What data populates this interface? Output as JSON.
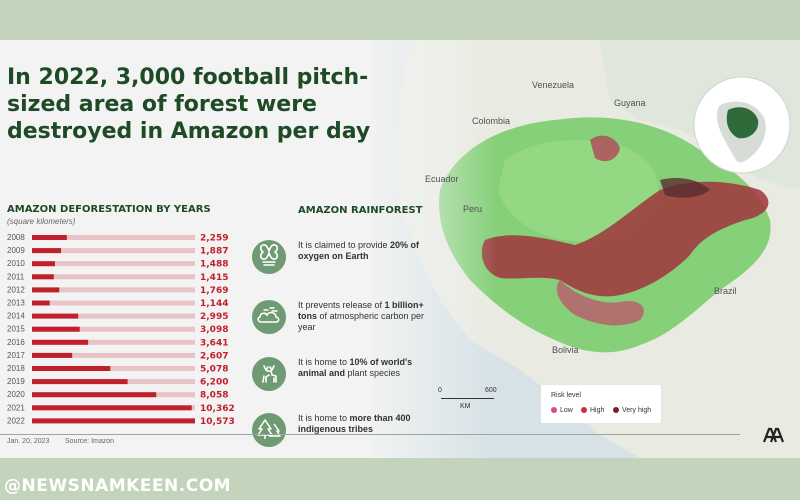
{
  "headline": "In 2022, 3,000 football pitch-sized area of forest were destroyed in Amazon per day",
  "chart_data": {
    "type": "bar",
    "title": "AMAZON DEFORESTATION BY YEARS",
    "subtitle": "(square kilometers)",
    "categories": [
      "2008",
      "2009",
      "2010",
      "2011",
      "2012",
      "2013",
      "2014",
      "2015",
      "2016",
      "2017",
      "2018",
      "2019",
      "2020",
      "2021",
      "2022"
    ],
    "values": [
      2259,
      1887,
      1488,
      1415,
      1769,
      1144,
      2995,
      3098,
      3641,
      2607,
      5078,
      6200,
      8058,
      10362,
      10573
    ],
    "value_labels": [
      "2,259",
      "1,887",
      "1,488",
      "1,415",
      "1,769",
      "1,144",
      "2,995",
      "3,098",
      "3,641",
      "2,607",
      "5,078",
      "6,200",
      "8,058",
      "10,362",
      "10,573"
    ],
    "ylim": [
      0,
      10573
    ],
    "bar_color": "#c0202c",
    "track_color": "#e8c4c8"
  },
  "rainforest": {
    "title": "AMAZON RAINFOREST",
    "facts": [
      {
        "icon": "oxygen-icon",
        "pre": "It is claimed to provide ",
        "bold": "20% of oxygen on Earth",
        "post": ""
      },
      {
        "icon": "cloud-icon",
        "pre": "It prevents release of ",
        "bold": "1 billion+ tons",
        "post": " of atmospheric carbon per year"
      },
      {
        "icon": "deer-icon",
        "pre": "It is home to ",
        "bold": "10% of world's animal and",
        "post": " plant species"
      },
      {
        "icon": "tree-icon",
        "pre": "It is home to ",
        "bold": "more than 400 indigenous tribes",
        "post": ""
      }
    ]
  },
  "map": {
    "labels": [
      "Venezuela",
      "Guyana",
      "Colombia",
      "Ecuador",
      "Peru",
      "Brazil",
      "Bolivia"
    ],
    "legend": {
      "title": "Risk level",
      "items": [
        {
          "label": "Low",
          "color": "#d24a9a"
        },
        {
          "label": "High",
          "color": "#c8323c"
        },
        {
          "label": "Very high",
          "color": "#7a1f2a"
        }
      ]
    },
    "scale": {
      "start": "0",
      "end": "600",
      "unit": "KM"
    }
  },
  "footer": {
    "date": "Jan. 20, 2023",
    "source": "Source: Imazon"
  },
  "watermark": "@NEWSNAMKEEN.COM",
  "colors": {
    "title": "#1f4a26",
    "forest": "#86d07a",
    "deforestation": "#a0343c",
    "ocean": "#d6e2e6"
  }
}
